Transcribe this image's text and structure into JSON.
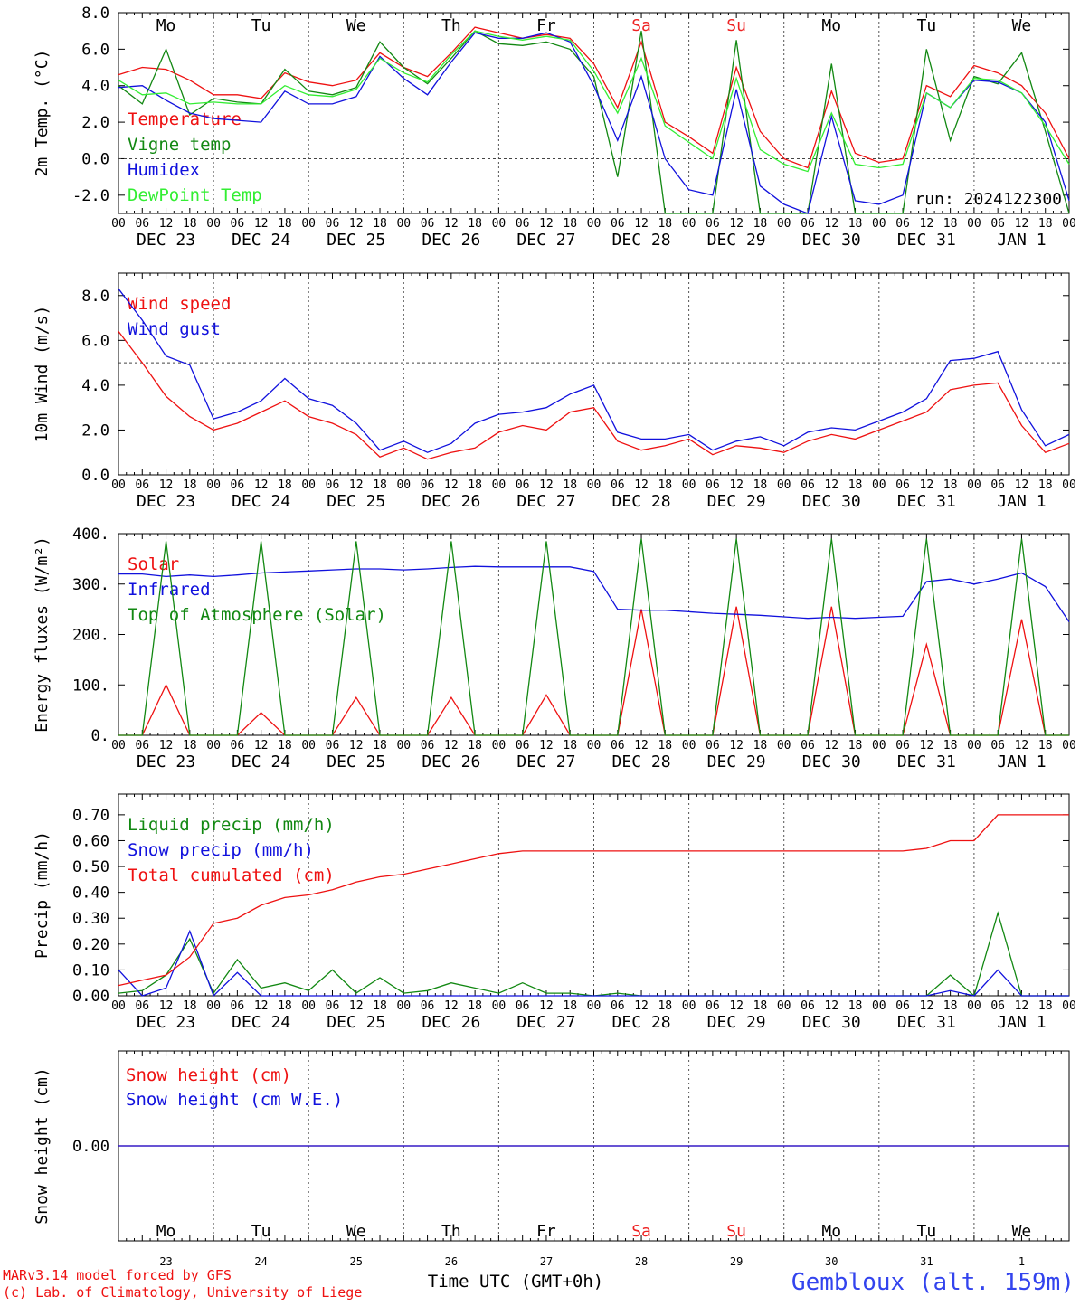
{
  "station": "Gembloux (alt. 159m)",
  "credits": [
    "MARv3.14 model forced by GFS",
    "(c) Lab. of Climatology, University of Liege"
  ],
  "xlabel": "Time UTC (GMT+0h)",
  "run_label": "run: 2024122300",
  "days": [
    {
      "abbr": "Mo",
      "weekend": false,
      "date": "DEC 23",
      "num": "23"
    },
    {
      "abbr": "Tu",
      "weekend": false,
      "date": "DEC 24",
      "num": "24"
    },
    {
      "abbr": "We",
      "weekend": false,
      "date": "DEC 25",
      "num": "25"
    },
    {
      "abbr": "Th",
      "weekend": false,
      "date": "DEC 26",
      "num": "26"
    },
    {
      "abbr": "Fr",
      "weekend": false,
      "date": "DEC 27",
      "num": "27"
    },
    {
      "abbr": "Sa",
      "weekend": true,
      "date": "DEC 28",
      "num": "28"
    },
    {
      "abbr": "Su",
      "weekend": true,
      "date": "DEC 29",
      "num": "29"
    },
    {
      "abbr": "Mo",
      "weekend": false,
      "date": "DEC 30",
      "num": "30"
    },
    {
      "abbr": "Tu",
      "weekend": false,
      "date": "DEC 31",
      "num": "31"
    },
    {
      "abbr": "We",
      "weekend": false,
      "date": "JAN  1",
      "num": "1"
    }
  ],
  "hour_ticks": [
    "00",
    "06",
    "12",
    "18"
  ],
  "colors": {
    "red": "#ee1111",
    "green": "#128812",
    "blue": "#1111dd",
    "lime": "#33ee33",
    "weekend": "#ee2222",
    "station": "#3344ee"
  },
  "chart_data": [
    {
      "type": "line",
      "ylabel": "2m Temp. (°C)",
      "ylim": [
        -3,
        8
      ],
      "yticks": [
        8,
        6,
        4,
        2,
        0,
        -2
      ],
      "ytick_labels": [
        "8.0",
        "6.0",
        "4.0",
        "2.0",
        "0.0",
        "-2.0"
      ],
      "x": [
        0,
        6,
        12,
        18,
        24,
        30,
        36,
        42,
        48,
        54,
        60,
        66,
        72,
        78,
        84,
        90,
        96,
        102,
        108,
        114,
        120,
        126,
        132,
        138,
        144,
        150,
        156,
        162,
        168,
        174,
        180,
        186,
        192,
        198,
        204,
        210,
        216,
        222,
        228,
        234,
        240
      ],
      "series": [
        {
          "name": "Temperature",
          "color": "red",
          "values": [
            4.6,
            5.0,
            4.9,
            4.3,
            3.5,
            3.5,
            3.3,
            4.7,
            4.2,
            4.0,
            4.3,
            5.8,
            5.0,
            4.5,
            5.8,
            7.2,
            6.9,
            6.6,
            6.8,
            6.6,
            5.2,
            2.8,
            6.4,
            2.0,
            1.2,
            0.3,
            5.0,
            1.5,
            0.0,
            -0.5,
            3.7,
            0.3,
            -0.2,
            0.0,
            4.0,
            3.4,
            5.1,
            4.7,
            4.0,
            2.5,
            0.0
          ]
        },
        {
          "name": "Vigne temp",
          "color": "green",
          "values": [
            4.0,
            3.0,
            6.0,
            2.4,
            3.3,
            3.1,
            3.0,
            4.9,
            3.7,
            3.5,
            3.9,
            6.4,
            5.0,
            4.1,
            5.5,
            7.0,
            6.3,
            6.2,
            6.4,
            6.0,
            4.5,
            -1.0,
            7.0,
            -3.0,
            -3.0,
            -3.0,
            6.5,
            -3.0,
            -3.0,
            -3.0,
            5.2,
            -3.0,
            -3.0,
            -3.0,
            6.0,
            1.0,
            4.5,
            4.1,
            5.8,
            1.5,
            -3.0
          ]
        },
        {
          "name": "Humidex",
          "color": "blue",
          "values": [
            3.9,
            4.0,
            3.2,
            2.5,
            2.2,
            2.1,
            2.0,
            3.7,
            3.0,
            3.0,
            3.4,
            5.6,
            4.4,
            3.5,
            5.3,
            6.9,
            6.6,
            6.6,
            6.9,
            6.4,
            4.0,
            1.0,
            4.5,
            0.0,
            -1.7,
            -2.0,
            3.8,
            -1.5,
            -2.5,
            -3.0,
            2.3,
            -2.3,
            -2.5,
            -2.0,
            3.6,
            2.8,
            4.3,
            4.2,
            3.6,
            2.0,
            -2.3
          ]
        },
        {
          "name": "DewPoint Temp",
          "color": "lime",
          "values": [
            4.3,
            3.5,
            3.6,
            3.0,
            3.1,
            3.0,
            3.0,
            4.0,
            3.5,
            3.4,
            3.8,
            5.5,
            4.7,
            4.2,
            5.7,
            7.0,
            6.7,
            6.5,
            6.7,
            6.5,
            4.8,
            2.5,
            5.5,
            1.8,
            0.9,
            0.0,
            4.4,
            0.5,
            -0.3,
            -0.7,
            2.5,
            -0.3,
            -0.5,
            -0.3,
            3.6,
            2.8,
            4.4,
            4.3,
            3.6,
            1.8,
            -0.3
          ]
        }
      ],
      "dashed_y": 0
    },
    {
      "type": "line",
      "ylabel": "10m Wind (m/s)",
      "ylim": [
        0,
        9
      ],
      "yticks": [
        8,
        6,
        4,
        2,
        0
      ],
      "ytick_labels": [
        "8.0",
        "6.0",
        "4.0",
        "2.0",
        "0.0"
      ],
      "x": [
        0,
        6,
        12,
        18,
        24,
        30,
        36,
        42,
        48,
        54,
        60,
        66,
        72,
        78,
        84,
        90,
        96,
        102,
        108,
        114,
        120,
        126,
        132,
        138,
        144,
        150,
        156,
        162,
        168,
        174,
        180,
        186,
        192,
        198,
        204,
        210,
        216,
        222,
        228,
        234,
        240
      ],
      "series": [
        {
          "name": "Wind speed",
          "color": "red",
          "values": [
            6.4,
            5.0,
            3.5,
            2.6,
            2.0,
            2.3,
            2.8,
            3.3,
            2.6,
            2.3,
            1.8,
            0.8,
            1.2,
            0.7,
            1.0,
            1.2,
            1.9,
            2.2,
            2.0,
            2.8,
            3.0,
            1.5,
            1.1,
            1.3,
            1.6,
            0.9,
            1.3,
            1.2,
            1.0,
            1.5,
            1.8,
            1.6,
            2.0,
            2.4,
            2.8,
            3.8,
            4.0,
            4.1,
            2.2,
            1.0,
            1.4
          ]
        },
        {
          "name": "Wind gust",
          "color": "blue",
          "values": [
            8.3,
            6.9,
            5.3,
            4.9,
            2.5,
            2.8,
            3.3,
            4.3,
            3.4,
            3.1,
            2.3,
            1.1,
            1.5,
            1.0,
            1.4,
            2.3,
            2.7,
            2.8,
            3.0,
            3.6,
            4.0,
            1.9,
            1.6,
            1.6,
            1.8,
            1.1,
            1.5,
            1.7,
            1.3,
            1.9,
            2.1,
            2.0,
            2.4,
            2.8,
            3.4,
            5.1,
            5.2,
            5.5,
            2.9,
            1.3,
            1.8
          ]
        }
      ],
      "dashed_y": 5
    },
    {
      "type": "line",
      "ylabel": "Energy fluxes (W/m²)",
      "ylim": [
        0,
        400
      ],
      "yticks": [
        400,
        300,
        200,
        100,
        0
      ],
      "ytick_labels": [
        "400.",
        "300.",
        "200.",
        "100.",
        "0."
      ],
      "x": [
        0,
        6,
        12,
        18,
        24,
        30,
        36,
        42,
        48,
        54,
        60,
        66,
        72,
        78,
        84,
        90,
        96,
        102,
        108,
        114,
        120,
        126,
        132,
        138,
        144,
        150,
        156,
        162,
        168,
        174,
        180,
        186,
        192,
        198,
        204,
        210,
        216,
        222,
        228,
        234,
        240
      ],
      "series": [
        {
          "name": "Solar",
          "color": "red",
          "values": [
            0,
            0,
            100,
            0,
            0,
            0,
            45,
            0,
            0,
            0,
            75,
            0,
            0,
            0,
            75,
            0,
            0,
            0,
            80,
            0,
            0,
            0,
            250,
            0,
            0,
            0,
            255,
            0,
            0,
            0,
            255,
            0,
            0,
            0,
            180,
            0,
            0,
            0,
            230,
            0,
            0
          ]
        },
        {
          "name": "Infrared",
          "color": "blue",
          "values": [
            320,
            320,
            315,
            318,
            315,
            318,
            322,
            324,
            326,
            328,
            330,
            330,
            328,
            330,
            333,
            335,
            334,
            334,
            334,
            334,
            325,
            250,
            248,
            248,
            245,
            242,
            240,
            238,
            235,
            232,
            234,
            232,
            234,
            236,
            305,
            310,
            300,
            310,
            322,
            295,
            225
          ]
        },
        {
          "name": "Top of Atmosphere (Solar)",
          "color": "green",
          "values": [
            0,
            0,
            385,
            0,
            0,
            0,
            385,
            0,
            0,
            0,
            385,
            0,
            0,
            0,
            385,
            0,
            0,
            0,
            385,
            0,
            0,
            0,
            390,
            0,
            0,
            0,
            390,
            0,
            0,
            0,
            390,
            0,
            0,
            0,
            390,
            0,
            0,
            0,
            390,
            0,
            0
          ]
        }
      ],
      "dashed_y": null
    },
    {
      "type": "line",
      "ylabel": "Precip (mm/h)",
      "ylim": [
        0,
        0.78
      ],
      "yticks": [
        0.7,
        0.6,
        0.5,
        0.4,
        0.3,
        0.2,
        0.1,
        0
      ],
      "ytick_labels": [
        "0.70",
        "0.60",
        "0.50",
        "0.40",
        "0.30",
        "0.20",
        "0.10",
        "0.00"
      ],
      "x": [
        0,
        6,
        12,
        18,
        24,
        30,
        36,
        42,
        48,
        54,
        60,
        66,
        72,
        78,
        84,
        90,
        96,
        102,
        108,
        114,
        120,
        126,
        132,
        138,
        144,
        150,
        156,
        162,
        168,
        174,
        180,
        186,
        192,
        198,
        204,
        210,
        216,
        222,
        228,
        234,
        240
      ],
      "series": [
        {
          "name": "Liquid precip (mm/h)",
          "color": "green",
          "values": [
            0.01,
            0.02,
            0.08,
            0.22,
            0.01,
            0.14,
            0.03,
            0.05,
            0.02,
            0.1,
            0.01,
            0.07,
            0.01,
            0.02,
            0.05,
            0.03,
            0.01,
            0.05,
            0.01,
            0.01,
            0.0,
            0.01,
            0.0,
            0.0,
            0.0,
            0.0,
            0.0,
            0.0,
            0.0,
            0.0,
            0.0,
            0.0,
            0.0,
            0.0,
            0.0,
            0.08,
            0.0,
            0.32,
            0.0,
            0.0,
            0.0
          ]
        },
        {
          "name": "Snow precip (mm/h)",
          "color": "blue",
          "values": [
            0.1,
            0.0,
            0.03,
            0.25,
            0.0,
            0.09,
            0.0,
            0.0,
            0.0,
            0.0,
            0.0,
            0.0,
            0.0,
            0.0,
            0.0,
            0.0,
            0.0,
            0.0,
            0.0,
            0.0,
            0.0,
            0.0,
            0.0,
            0.0,
            0.0,
            0.0,
            0.0,
            0.0,
            0.0,
            0.0,
            0.0,
            0.0,
            0.0,
            0.0,
            0.0,
            0.02,
            0.0,
            0.1,
            0.0,
            0.0,
            0.0
          ]
        },
        {
          "name": "Total cumulated (cm)",
          "color": "red",
          "values": [
            0.04,
            0.06,
            0.08,
            0.15,
            0.28,
            0.3,
            0.35,
            0.38,
            0.39,
            0.41,
            0.44,
            0.46,
            0.47,
            0.49,
            0.51,
            0.53,
            0.55,
            0.56,
            0.56,
            0.56,
            0.56,
            0.56,
            0.56,
            0.56,
            0.56,
            0.56,
            0.56,
            0.56,
            0.56,
            0.56,
            0.56,
            0.56,
            0.56,
            0.56,
            0.57,
            0.6,
            0.6,
            0.7,
            0.7,
            0.7,
            0.7
          ]
        }
      ],
      "dashed_y": null
    },
    {
      "type": "line",
      "ylabel": "Snow height (cm)",
      "ylim": [
        -1,
        1
      ],
      "yticks": [
        0
      ],
      "ytick_labels": [
        "0.00"
      ],
      "x": [
        0,
        240
      ],
      "series": [
        {
          "name": "Snow height (cm)",
          "color": "red",
          "values": [
            0,
            0
          ]
        },
        {
          "name": "Snow height (cm W.E.)",
          "color": "blue",
          "values": [
            0,
            0
          ]
        }
      ],
      "dashed_y": null
    }
  ]
}
